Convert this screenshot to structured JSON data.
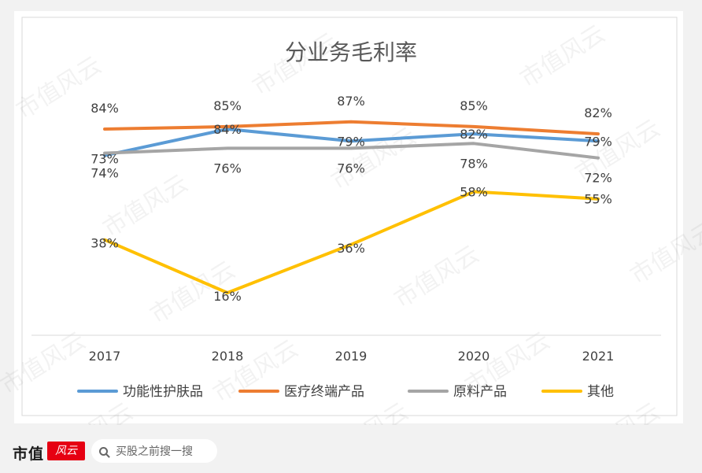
{
  "chart_data": {
    "type": "line",
    "title": "分业务毛利率",
    "categories": [
      "2017",
      "2018",
      "2019",
      "2020",
      "2021"
    ],
    "ylim": [
      0,
      100
    ],
    "grid": false,
    "legend_position": "bottom",
    "series": [
      {
        "name": "功能性护肤品",
        "color": "#5b9bd5",
        "values": [
          73,
          84,
          79,
          82,
          79
        ],
        "labels": [
          "73%",
          "84%",
          "79%",
          "82%",
          "79%"
        ]
      },
      {
        "name": "医疗终端产品",
        "color": "#ed7d31",
        "values": [
          84,
          85,
          87,
          85,
          82
        ],
        "labels": [
          "84%",
          "85%",
          "87%",
          "85%",
          "82%"
        ]
      },
      {
        "name": "原料产品",
        "color": "#a5a5a5",
        "values": [
          74,
          76,
          76,
          78,
          72
        ],
        "labels": [
          "74%",
          "76%",
          "76%",
          "78%",
          "72%"
        ]
      },
      {
        "name": "其他",
        "color": "#ffc000",
        "values": [
          38,
          16,
          36,
          58,
          55
        ],
        "labels": [
          "38%",
          "16%",
          "36%",
          "58%",
          "55%"
        ]
      }
    ]
  },
  "watermark": "市值风云",
  "footer": {
    "brand": "市值",
    "logo_text": "风云",
    "search_text": "买股之前搜一搜"
  }
}
